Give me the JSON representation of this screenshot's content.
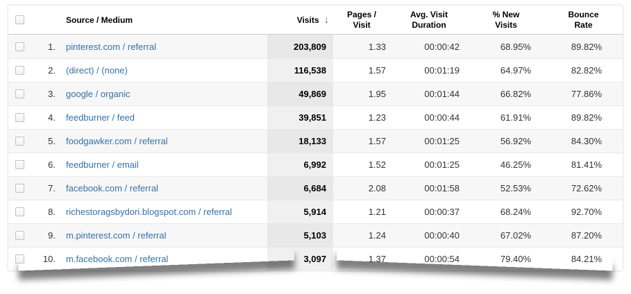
{
  "header": {
    "columns": {
      "source_medium": "Source / Medium",
      "visits": "Visits",
      "pages_per_visit": "Pages /\nVisit",
      "avg_visit_duration": "Avg. Visit\nDuration",
      "pct_new_visits": "% New\nVisits",
      "bounce_rate": "Bounce\nRate"
    },
    "sort": {
      "column": "visits",
      "direction": "descending",
      "icon": "↓"
    }
  },
  "rows": [
    {
      "rank": "1.",
      "source_medium": "pinterest.com / referral",
      "visits": "203,809",
      "pages_per_visit": "1.33",
      "avg_visit_duration": "00:00:42",
      "pct_new_visits": "68.95%",
      "bounce_rate": "89.82%"
    },
    {
      "rank": "2.",
      "source_medium": "(direct) / (none)",
      "visits": "116,538",
      "pages_per_visit": "1.57",
      "avg_visit_duration": "00:01:19",
      "pct_new_visits": "64.97%",
      "bounce_rate": "82.82%"
    },
    {
      "rank": "3.",
      "source_medium": "google / organic",
      "visits": "49,869",
      "pages_per_visit": "1.95",
      "avg_visit_duration": "00:01:44",
      "pct_new_visits": "66.82%",
      "bounce_rate": "77.86%"
    },
    {
      "rank": "4.",
      "source_medium": "feedburner / feed",
      "visits": "39,851",
      "pages_per_visit": "1.23",
      "avg_visit_duration": "00:00:44",
      "pct_new_visits": "61.91%",
      "bounce_rate": "89.82%"
    },
    {
      "rank": "5.",
      "source_medium": "foodgawker.com / referral",
      "visits": "18,133",
      "pages_per_visit": "1.57",
      "avg_visit_duration": "00:01:25",
      "pct_new_visits": "56.92%",
      "bounce_rate": "84.30%"
    },
    {
      "rank": "6.",
      "source_medium": "feedburner / email",
      "visits": "6,992",
      "pages_per_visit": "1.52",
      "avg_visit_duration": "00:01:25",
      "pct_new_visits": "46.25%",
      "bounce_rate": "81.41%"
    },
    {
      "rank": "7.",
      "source_medium": "facebook.com / referral",
      "visits": "6,684",
      "pages_per_visit": "2.08",
      "avg_visit_duration": "00:01:58",
      "pct_new_visits": "52.53%",
      "bounce_rate": "72.62%"
    },
    {
      "rank": "8.",
      "source_medium": "richestoragsbydori.blogspot.com / referral",
      "visits": "5,914",
      "pages_per_visit": "1.21",
      "avg_visit_duration": "00:00:37",
      "pct_new_visits": "68.24%",
      "bounce_rate": "92.70%"
    },
    {
      "rank": "9.",
      "source_medium": "m.pinterest.com / referral",
      "visits": "5,103",
      "pages_per_visit": "1.24",
      "avg_visit_duration": "00:00:40",
      "pct_new_visits": "67.02%",
      "bounce_rate": "87.20%"
    },
    {
      "rank": "10.",
      "source_medium": "m.facebook.com / referral",
      "visits": "3,097",
      "pages_per_visit": "1.37",
      "avg_visit_duration": "00:00:54",
      "pct_new_visits": "79.40%",
      "bounce_rate": "84.21%"
    }
  ],
  "colors": {
    "link_blue": "#3272ab",
    "row_stripe": "#f7f7f7",
    "visits_column_bg": "#ececec",
    "header_text": "#000000",
    "sort_arrow": "#666666"
  }
}
